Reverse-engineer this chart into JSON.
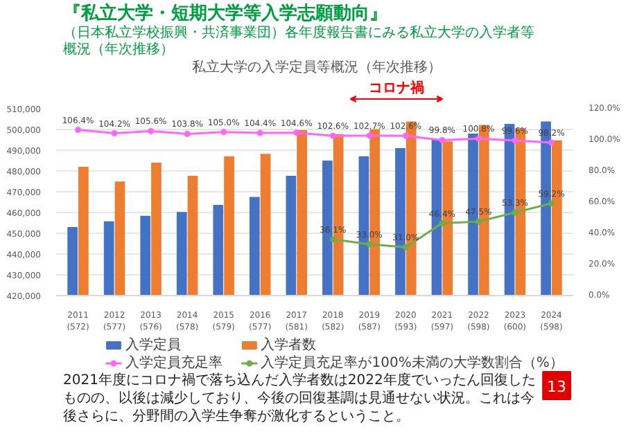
{
  "chart_data": {
    "type": "bar",
    "title": "『私立大学・短期大学等入学志願動向』",
    "subtitle": "（日本私立学校振興・共済事業団）各年度報告書にみる私立大学の入学者等概況（年次推移）",
    "annotations": [
      "私立大学の入学定員等概況（年次推移）",
      "コロナ禍",
      "2021年度にコロナ禍で落ち込んだ入学者数は2022年度でいったん回復したものの、以後は減少しており、今後の回復基調は見通せない状況。これは今後さらに、分野間の入学生争奪が激化するということ。",
      "13"
    ],
    "categories": [
      "2011\n(572)",
      "2012\n(577)",
      "2013\n(576)",
      "2014\n(578)",
      "2015\n(579)",
      "2016\n(577)",
      "2017\n(581)",
      "2018\n(582)",
      "2019\n(587)",
      "2020\n(593)",
      "2021\n(597)",
      "2022\n(598)",
      "2023\n(600)",
      "2024\n(598)"
    ],
    "series": [
      {
        "name": "入学定員",
        "color": "#4472c4",
        "values": [
          452997,
          455790,
          458456,
          460251,
          463697,
          467525,
          477667,
          484986,
          487065,
          491012,
          495162,
          498019,
          502635,
          503874
        ]
      },
      {
        "name": "入学者数",
        "color": "#ed7d31",
        "values": [
          481959,
          474892,
          484024,
          477631,
          487061,
          488209,
          499678,
          497773,
          500083,
          503830,
          494213,
          502199,
          500599,
          494730
        ]
      },
      {
        "name": "入学定員充足率",
        "type": "line",
        "axis": "y2",
        "color": "#ff66ff",
        "values": [
          106.4,
          104.2,
          105.6,
          103.8,
          105.0,
          104.4,
          104.6,
          102.6,
          102.7,
          102.6,
          99.8,
          100.8,
          99.6,
          98.2
        ],
        "value_labels": [
          "106.4%",
          "104.2%",
          "105.6%",
          "103.8%",
          "105.0%",
          "104.4%",
          "104.6%",
          "102.6%",
          "102.7%",
          "102.6%",
          "99.8%",
          "100.8%",
          "99.6%",
          "98.2%"
        ]
      },
      {
        "name": "入学定員充足率が100%未満の大学数割合（%）",
        "type": "line",
        "axis": "y2",
        "color": "#70ad47",
        "values": [
          null,
          null,
          null,
          null,
          null,
          null,
          null,
          36.1,
          33.0,
          31.0,
          46.4,
          47.5,
          53.3,
          59.2
        ],
        "value_labels": [
          null,
          null,
          null,
          null,
          null,
          null,
          null,
          "36.1%",
          "33.0%",
          "31.0%",
          "46.4%",
          "47.5%",
          "53.3%",
          "59.2%"
        ]
      }
    ],
    "ylim": [
      420000,
      510000
    ],
    "yticks": [
      {
        "value": 420000,
        "label": "420,000"
      },
      {
        "value": 430000,
        "label": "430,000"
      },
      {
        "value": 440000,
        "label": "440,000"
      },
      {
        "value": 450000,
        "label": "450,000"
      },
      {
        "value": 460000,
        "label": "460,000"
      },
      {
        "value": 470000,
        "label": "470,000"
      },
      {
        "value": 480000,
        "label": "480,000"
      },
      {
        "value": 490000,
        "label": "490,000"
      },
      {
        "value": 500000,
        "label": "500,000"
      },
      {
        "value": 510000,
        "label": "510,000"
      }
    ],
    "y2lim": [
      0,
      120
    ],
    "y2ticks": [
      {
        "value": 0,
        "label": "0.0%"
      },
      {
        "value": 20,
        "label": "20.0%"
      },
      {
        "value": 40,
        "label": "40.0%"
      },
      {
        "value": 60,
        "label": "60.0%"
      },
      {
        "value": 80,
        "label": "80.0%"
      },
      {
        "value": 100,
        "label": "100.0%"
      },
      {
        "value": 120,
        "label": "120.0%"
      }
    ],
    "grid": "y",
    "legend": "bottom",
    "marker": "circle"
  }
}
